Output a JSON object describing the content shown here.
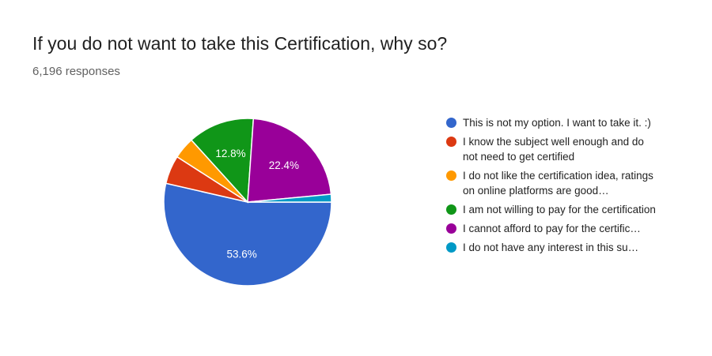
{
  "header": {
    "title": "If you do not want to take this Certification, why so?",
    "responses": "6,196 responses"
  },
  "chart_data": {
    "type": "pie",
    "start_angle_deg": 90,
    "direction": "clockwise",
    "legend_position": "right",
    "slices": [
      {
        "label": "This is not my option. I want to take it. :)",
        "display_label": "This is not my option. I want to take it. :)",
        "value": 53.6,
        "color": "#3366cc",
        "data_label": "53.6%"
      },
      {
        "label": "I know the subject well enough and do not need to get certified",
        "display_label": "I know the subject well enough and do not need to get certified",
        "value": 5.5,
        "color": "#dc3912",
        "data_label": ""
      },
      {
        "label": "I do not like the certification idea, ratings on online platforms are good…",
        "display_label": "I do not like the certification idea, ratings on online platforms are good…",
        "value": 4.2,
        "color": "#ff9900",
        "data_label": ""
      },
      {
        "label": "I am not willing to pay for the certification",
        "display_label": "I am not willing to pay for the certification",
        "value": 12.8,
        "color": "#109618",
        "data_label": "12.8%"
      },
      {
        "label": "I cannot afford to pay for the certific…",
        "display_label": "I cannot afford to pay for the certific…",
        "value": 22.4,
        "color": "#990099",
        "data_label": "22.4%"
      },
      {
        "label": "I do not have any interest in this su…",
        "display_label": "I do not have any interest in this su…",
        "value": 1.5,
        "color": "#0099c6",
        "data_label": ""
      }
    ]
  }
}
